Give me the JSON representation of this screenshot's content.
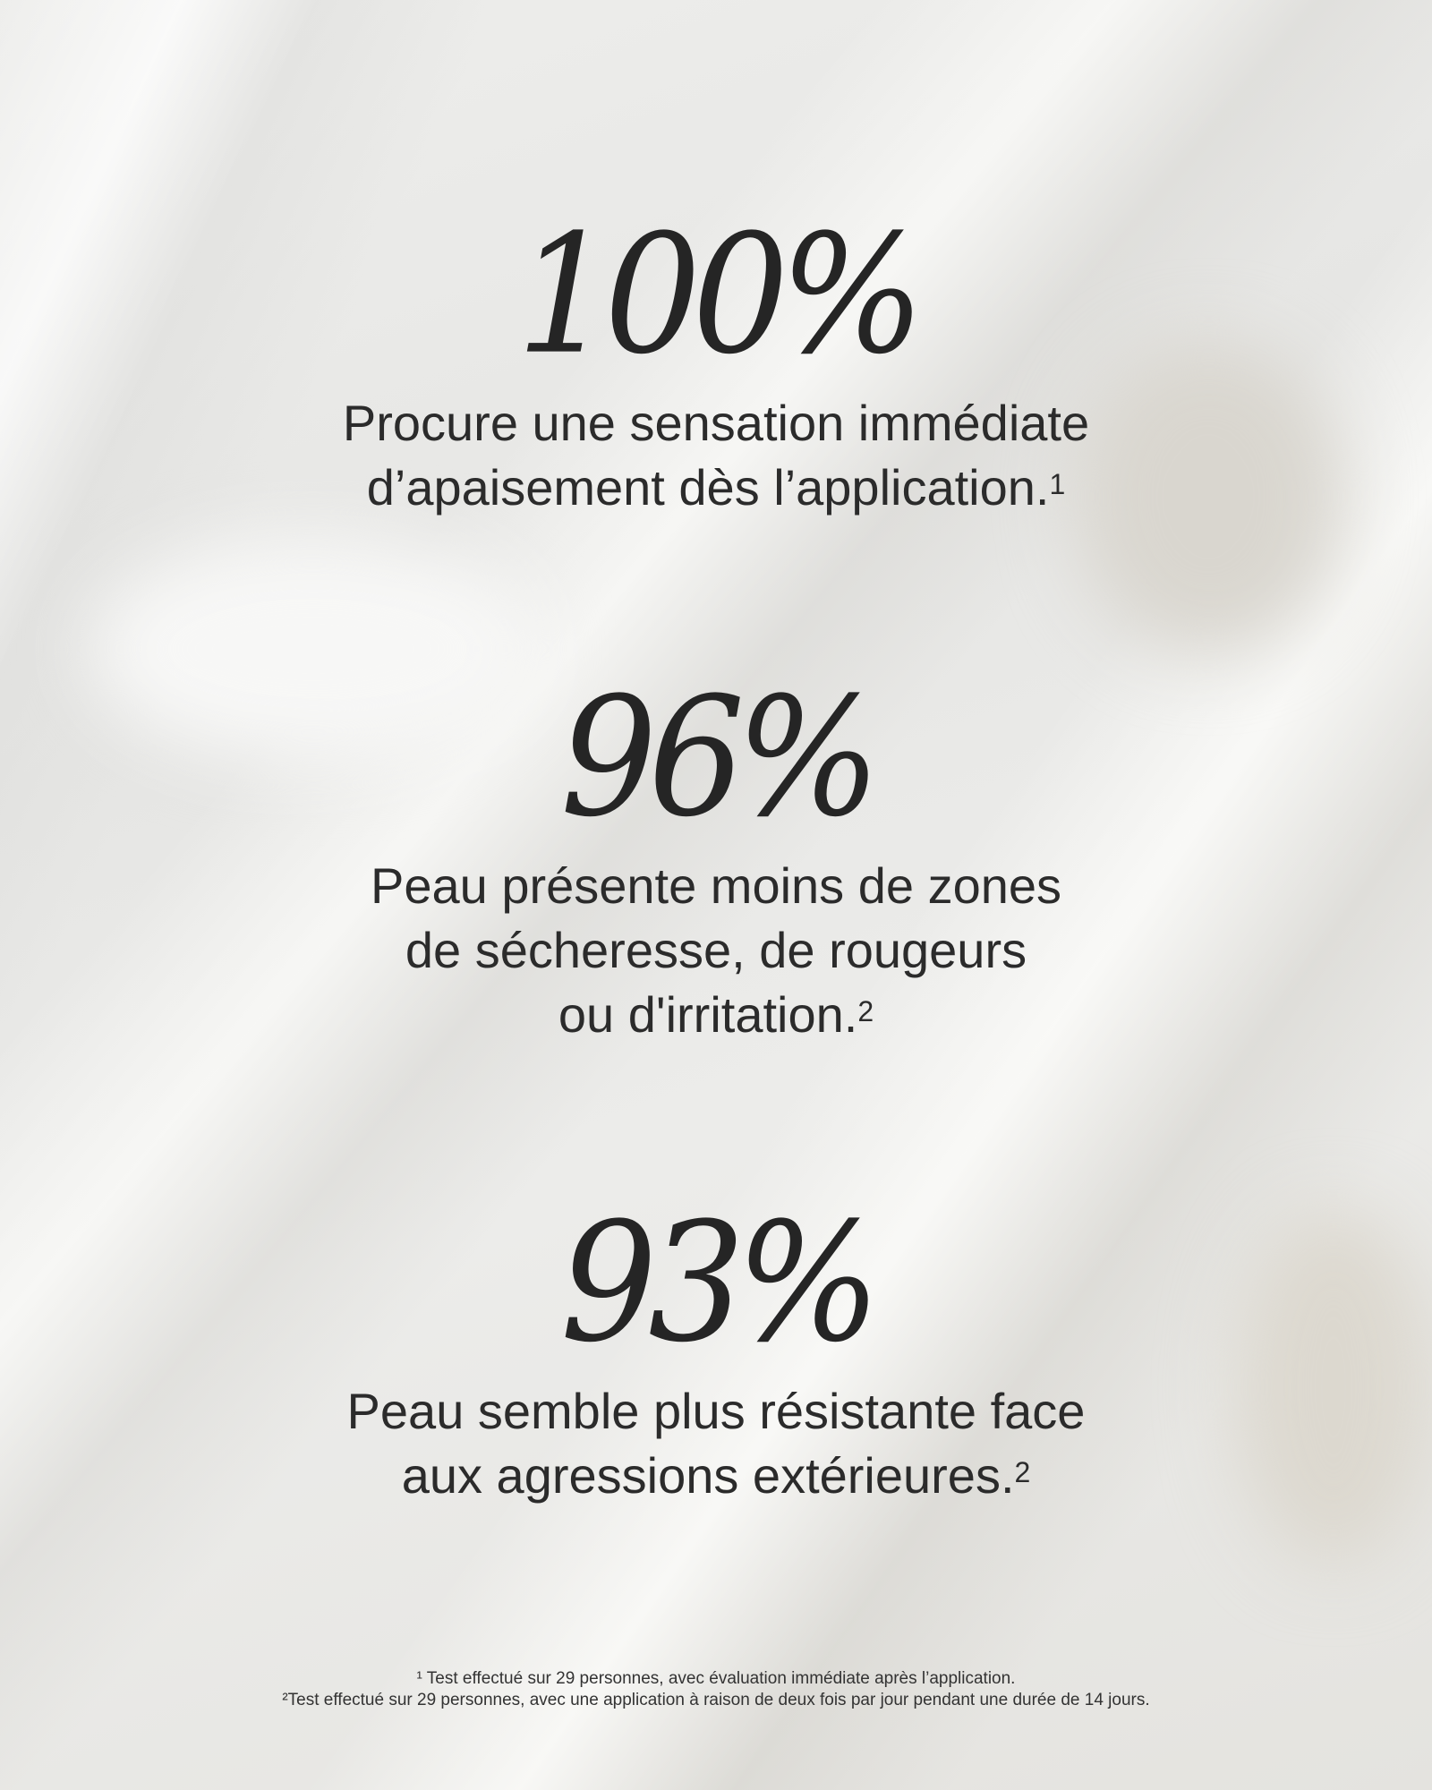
{
  "stats": [
    {
      "value": "100%",
      "lines": [
        "Procure une sensation immédiate",
        "d’apaisement dès l’application."
      ],
      "note": "1"
    },
    {
      "value": "96%",
      "lines": [
        "Peau présente moins de zones",
        "de sécheresse, de rougeurs",
        "ou d'irritation."
      ],
      "note": "2"
    },
    {
      "value": "93%",
      "lines": [
        "Peau semble plus résistante face",
        "aux agressions extérieures."
      ],
      "note": "2"
    }
  ],
  "footnotes": [
    "¹ Test effectué sur 29 personnes, avec évaluation immédiate après l’application.",
    "²Test effectué sur 29 personnes, avec une application à raison de deux fois par jour pendant une durée de 14 jours."
  ]
}
